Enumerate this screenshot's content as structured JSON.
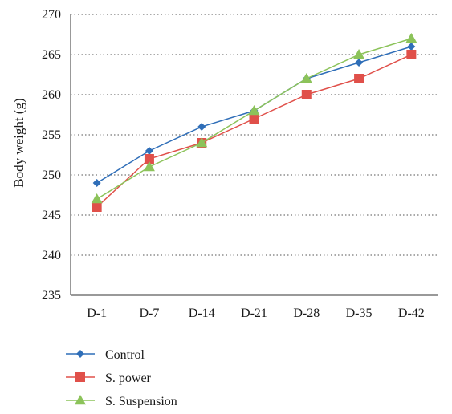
{
  "chart_data": {
    "type": "line",
    "title": "",
    "xlabel": "",
    "ylabel": "Body weight (g)",
    "categories": [
      "D-1",
      "D-7",
      "D-14",
      "D-21",
      "D-28",
      "D-35",
      "D-42"
    ],
    "yticks": [
      "235",
      "240",
      "245",
      "250",
      "255",
      "260",
      "265",
      "270"
    ],
    "ylim": [
      235,
      270
    ],
    "grid": true,
    "legend_position": "bottom-left",
    "series": [
      {
        "name": "Control",
        "color": "#2f6eb8",
        "marker": "diamond",
        "values": [
          249,
          253,
          256,
          258,
          262,
          264,
          266
        ]
      },
      {
        "name": "S. power",
        "color": "#e0504a",
        "marker": "square",
        "values": [
          246,
          252,
          254,
          257,
          260,
          262,
          265
        ]
      },
      {
        "name": "S. Suspension",
        "color": "#8cc35a",
        "marker": "triangle",
        "values": [
          247,
          251,
          254,
          258,
          262,
          265,
          267
        ]
      }
    ]
  }
}
